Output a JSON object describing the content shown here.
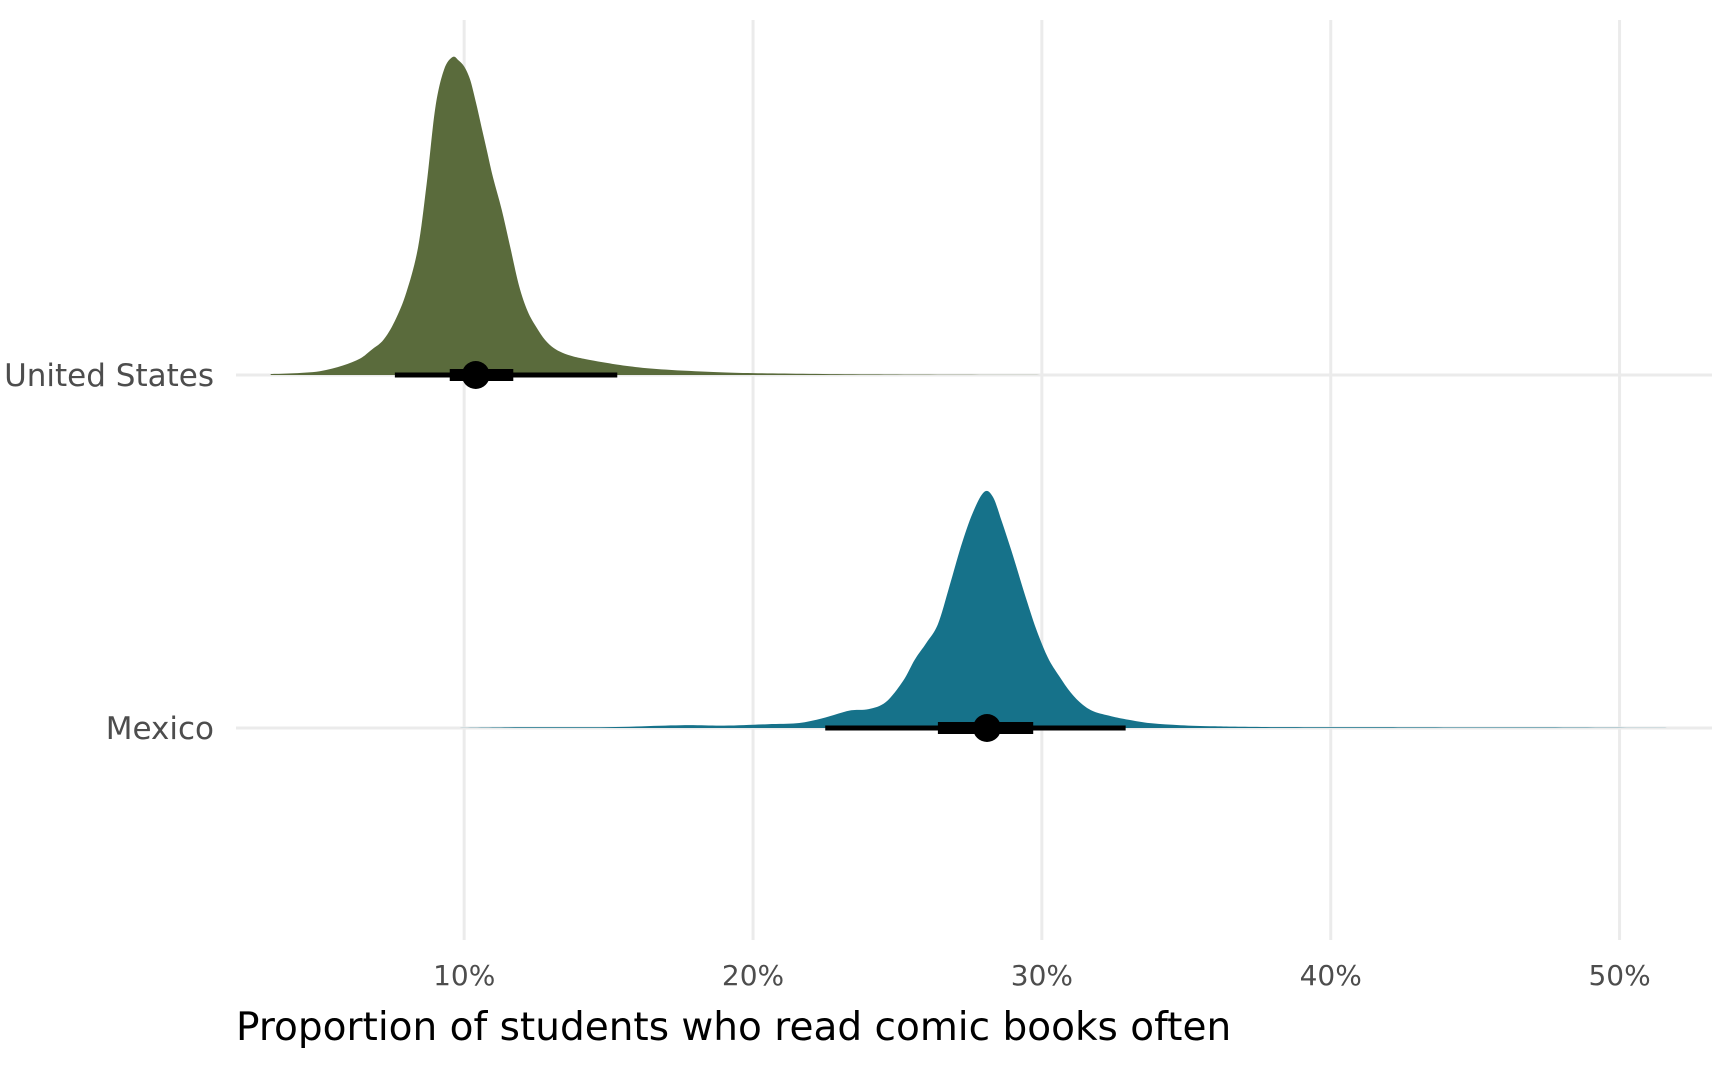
{
  "chart_data": {
    "type": "halfeye",
    "xlabel": "Proportion of students who read comic books often",
    "ylabel": "",
    "xlim": [
      0.021,
      0.532
    ],
    "x_ticks": [
      0.1,
      0.2,
      0.3,
      0.4,
      0.5
    ],
    "x_tick_labels": [
      "10%",
      "20%",
      "30%",
      "40%",
      "50%"
    ],
    "grid": true,
    "legend": "none",
    "categories": [
      "United States",
      "Mexico"
    ],
    "series": [
      {
        "name": "United States",
        "color": "#5a6b3c",
        "point": 0.104,
        "interval_66": [
          0.095,
          0.117
        ],
        "interval_95": [
          0.076,
          0.153
        ],
        "density": {
          "x": [
            0.033,
            0.04,
            0.05,
            0.058,
            0.064,
            0.068,
            0.072,
            0.076,
            0.08,
            0.084,
            0.087,
            0.09,
            0.093,
            0.096,
            0.098,
            0.1,
            0.102,
            0.104,
            0.106,
            0.108,
            0.11,
            0.113,
            0.116,
            0.119,
            0.122,
            0.125,
            0.128,
            0.131,
            0.134,
            0.138,
            0.142,
            0.148,
            0.155,
            0.165,
            0.18,
            0.2,
            0.24,
            0.3
          ],
          "y": [
            0.003,
            0.005,
            0.012,
            0.03,
            0.052,
            0.08,
            0.11,
            0.17,
            0.26,
            0.4,
            0.6,
            0.84,
            0.96,
            1.0,
            0.99,
            0.97,
            0.93,
            0.86,
            0.78,
            0.7,
            0.62,
            0.52,
            0.4,
            0.28,
            0.2,
            0.15,
            0.11,
            0.085,
            0.07,
            0.058,
            0.05,
            0.04,
            0.03,
            0.02,
            0.012,
            0.006,
            0.002,
            0.0
          ]
        }
      },
      {
        "name": "Mexico",
        "color": "#16728a",
        "point": 0.281,
        "interval_66": [
          0.264,
          0.297
        ],
        "interval_95": [
          0.225,
          0.329
        ],
        "density": {
          "x": [
            0.097,
            0.12,
            0.15,
            0.175,
            0.19,
            0.205,
            0.215,
            0.222,
            0.228,
            0.234,
            0.24,
            0.246,
            0.252,
            0.256,
            0.26,
            0.264,
            0.268,
            0.272,
            0.276,
            0.28,
            0.283,
            0.286,
            0.29,
            0.294,
            0.298,
            0.302,
            0.306,
            0.31,
            0.314,
            0.318,
            0.324,
            0.33,
            0.338,
            0.348,
            0.36,
            0.38,
            0.42,
            0.47,
            0.517
          ],
          "y": [
            0.0,
            0.003,
            0.004,
            0.012,
            0.01,
            0.016,
            0.02,
            0.035,
            0.055,
            0.075,
            0.08,
            0.11,
            0.2,
            0.29,
            0.36,
            0.44,
            0.6,
            0.77,
            0.91,
            1.0,
            0.98,
            0.88,
            0.73,
            0.57,
            0.42,
            0.3,
            0.22,
            0.15,
            0.1,
            0.07,
            0.05,
            0.035,
            0.02,
            0.012,
            0.007,
            0.004,
            0.003,
            0.002,
            0.0
          ]
        }
      }
    ]
  }
}
